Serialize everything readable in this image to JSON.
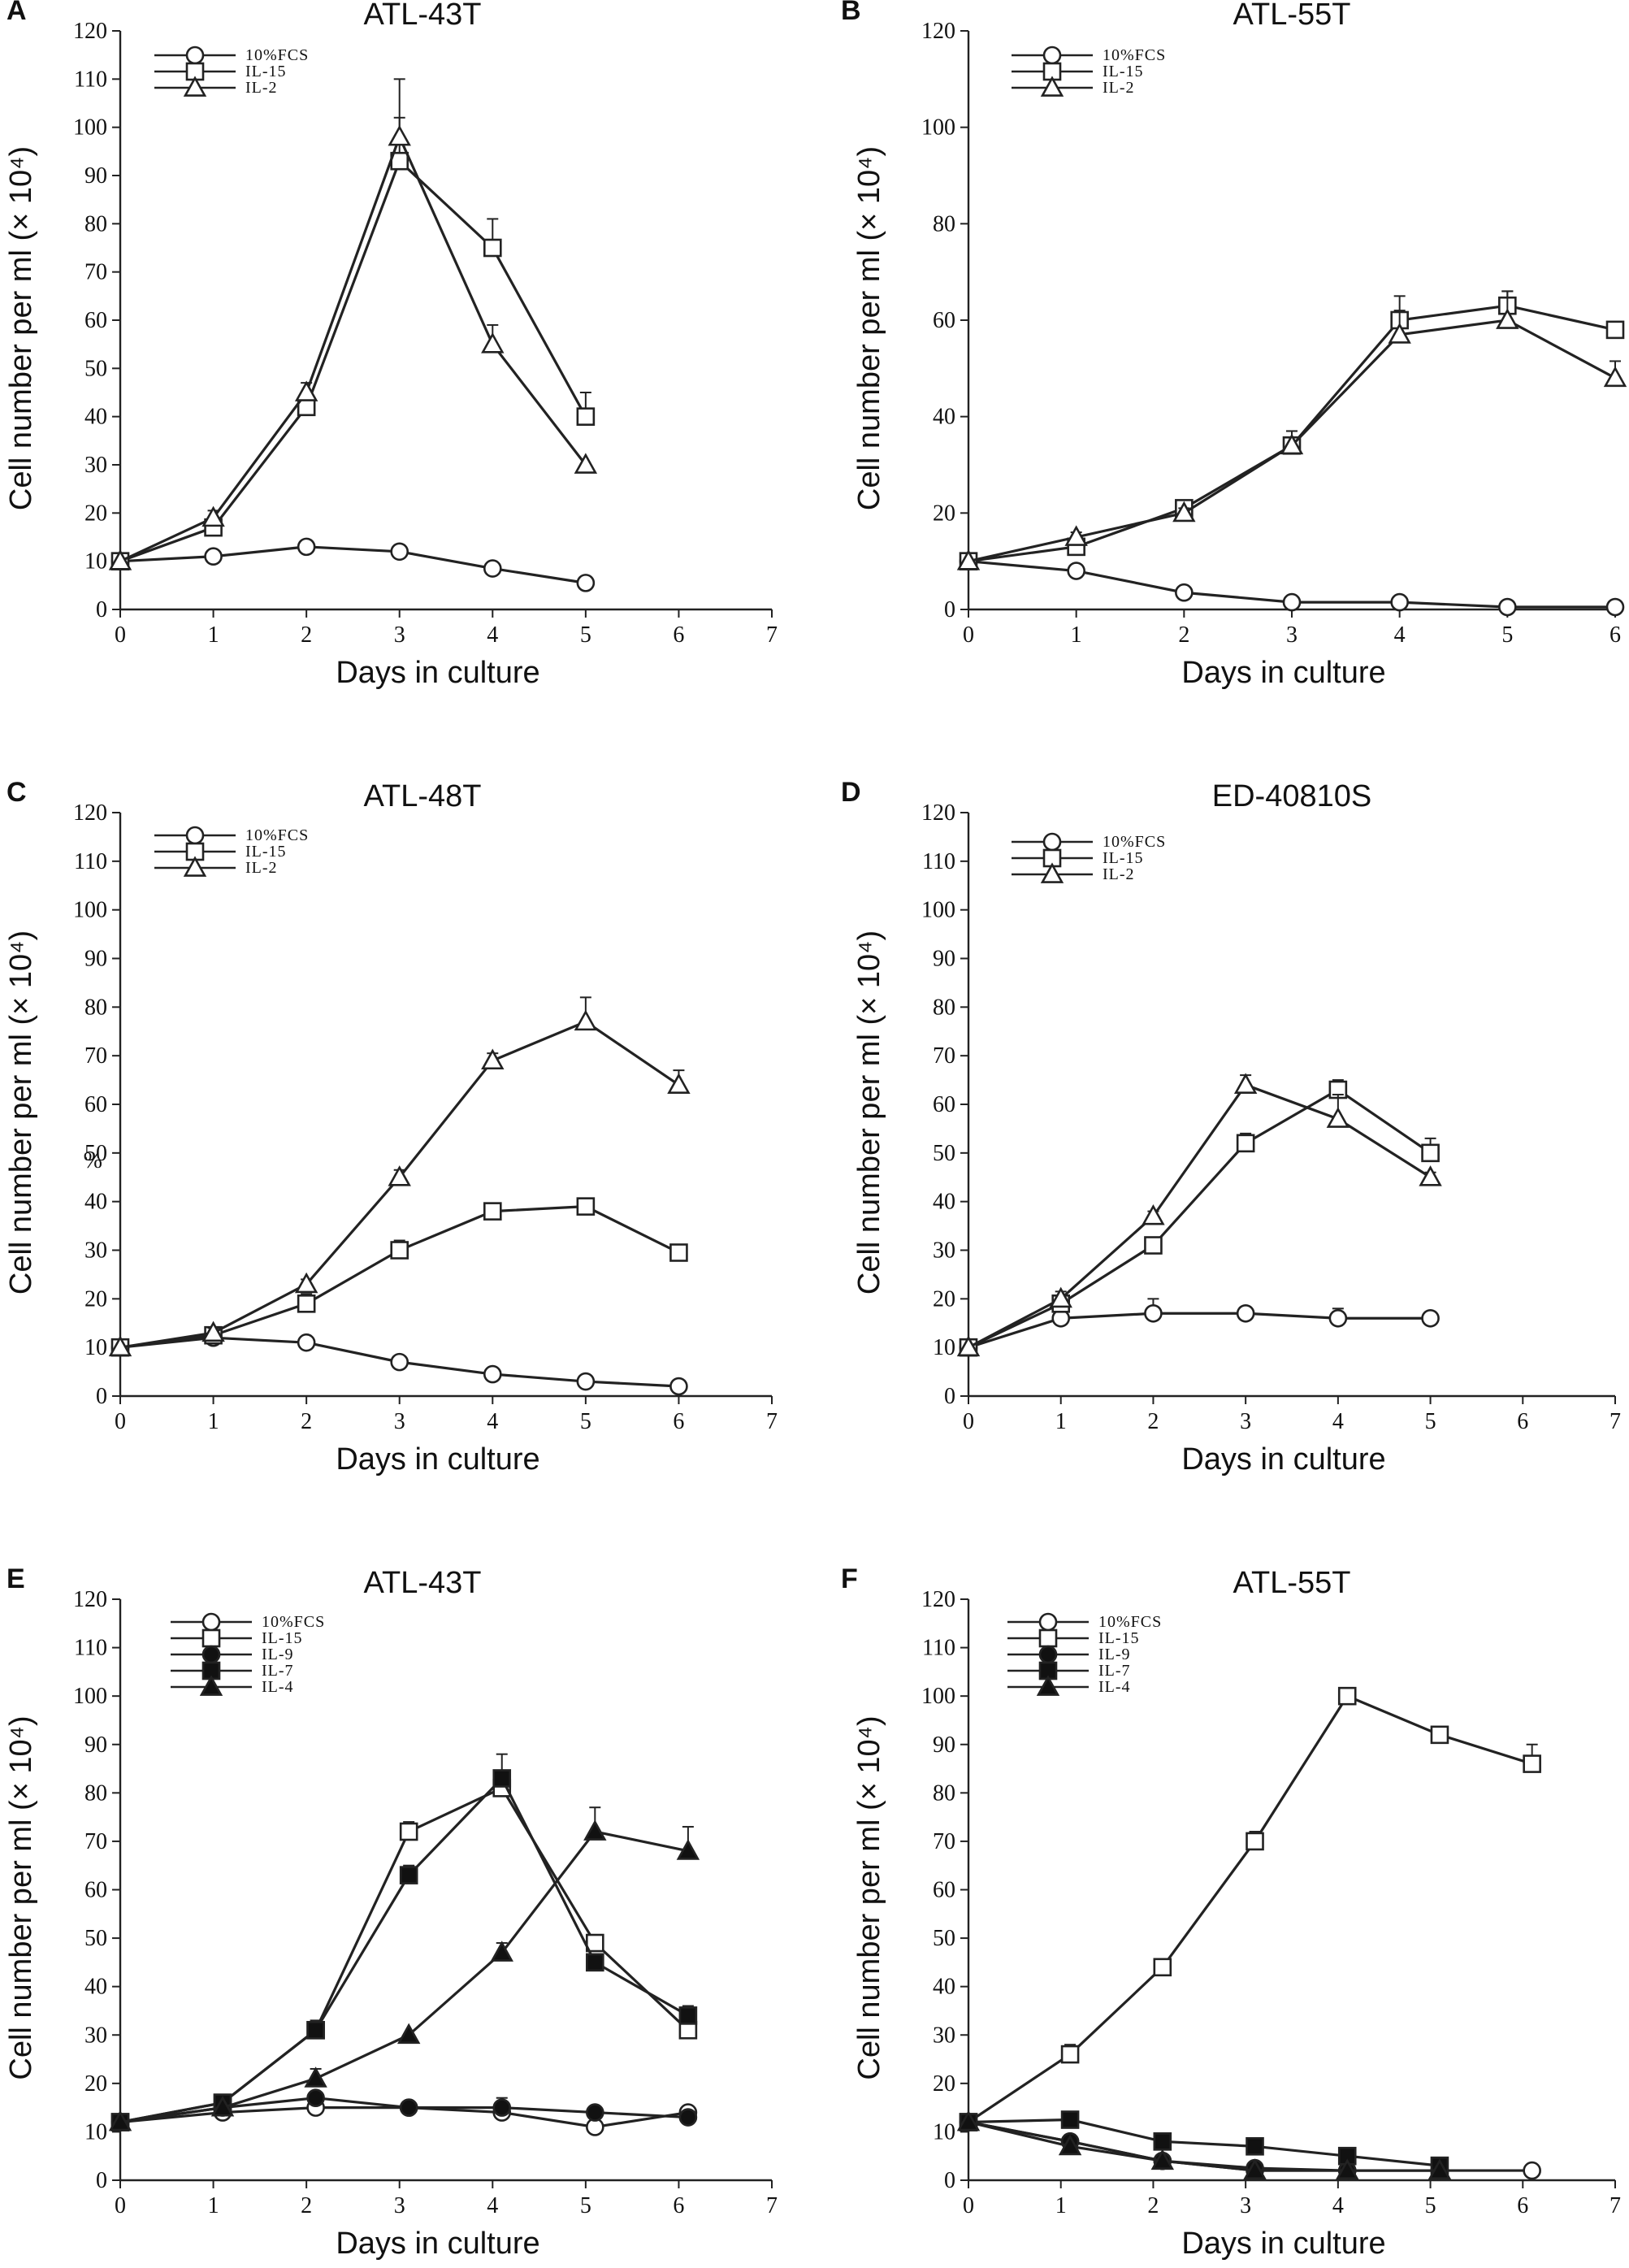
{
  "chart_data": [
    {
      "panel": "A",
      "type": "line",
      "title": "ATL-43T",
      "xlabel": "Days in culture",
      "ylabel": "Cell number per ml (× 10⁴)",
      "xlim": [
        0,
        7
      ],
      "ylim": [
        0,
        120
      ],
      "xticks": [
        0,
        1,
        2,
        3,
        4,
        5,
        6,
        7
      ],
      "yticks": [
        0,
        10,
        20,
        30,
        40,
        50,
        60,
        70,
        80,
        90,
        100,
        110,
        120
      ],
      "series": [
        {
          "name": "10%FCS",
          "marker": "circle-open",
          "x": [
            0,
            1,
            2,
            3,
            4,
            5
          ],
          "y": [
            10,
            11,
            13,
            12,
            8.5,
            5.5
          ],
          "err": [
            0,
            0,
            0,
            0,
            0,
            0
          ]
        },
        {
          "name": "IL-15",
          "marker": "square-open",
          "x": [
            0,
            1,
            2,
            3,
            4,
            5
          ],
          "y": [
            10,
            17,
            42,
            93,
            75,
            40
          ],
          "err": [
            0,
            1.5,
            3,
            9,
            6,
            5
          ]
        },
        {
          "name": "IL-2",
          "marker": "triangle-open",
          "x": [
            0,
            1,
            2,
            3,
            4,
            5
          ],
          "y": [
            10,
            19,
            45,
            98,
            55,
            30
          ],
          "err": [
            0,
            1.5,
            2,
            12,
            4,
            0
          ]
        }
      ]
    },
    {
      "panel": "B",
      "type": "line",
      "title": "ATL-55T",
      "xlabel": "Days in culture",
      "ylabel": "Cell number per ml (× 10⁴)",
      "xlim": [
        0,
        6
      ],
      "ylim": [
        0,
        120
      ],
      "xticks": [
        0,
        1,
        2,
        3,
        4,
        5,
        6
      ],
      "yticks": [
        0,
        20,
        40,
        60,
        80,
        100,
        120
      ],
      "series": [
        {
          "name": "10%FCS",
          "marker": "circle-open",
          "x": [
            0,
            1,
            2,
            3,
            4,
            5,
            6
          ],
          "y": [
            10,
            8,
            3.5,
            1.5,
            1.5,
            0.5,
            0.5
          ],
          "err": [
            0,
            0,
            0,
            0,
            0,
            0,
            0
          ]
        },
        {
          "name": "IL-15",
          "marker": "square-open",
          "x": [
            0,
            1,
            2,
            3,
            4,
            5,
            6
          ],
          "y": [
            10,
            13,
            21,
            34,
            60,
            63,
            58
          ],
          "err": [
            0,
            1,
            1,
            3,
            5,
            3,
            1.5
          ]
        },
        {
          "name": "IL-2",
          "marker": "triangle-open",
          "x": [
            0,
            1,
            2,
            3,
            4,
            5,
            6
          ],
          "y": [
            10,
            15,
            20,
            34,
            57,
            60,
            48
          ],
          "err": [
            0,
            1,
            1,
            3,
            5,
            6,
            3.5
          ]
        }
      ]
    },
    {
      "panel": "C",
      "type": "line",
      "title": "ATL-48T",
      "xlabel": "Days in culture",
      "ylabel": "Cell number per ml (× 10⁴)",
      "xlim": [
        0,
        7
      ],
      "ylim": [
        0,
        120
      ],
      "xticks": [
        0,
        1,
        2,
        3,
        4,
        5,
        6,
        7
      ],
      "yticks": [
        0,
        10,
        20,
        30,
        40,
        50,
        60,
        70,
        80,
        90,
        100,
        110,
        120
      ],
      "stray_mark": "%",
      "series": [
        {
          "name": "10%FCS",
          "marker": "circle-open",
          "x": [
            0,
            1,
            2,
            3,
            4,
            5,
            6
          ],
          "y": [
            10,
            12,
            11,
            7,
            4.5,
            3,
            2
          ],
          "err": [
            0,
            0,
            0,
            0,
            0,
            0,
            0
          ]
        },
        {
          "name": "IL-15",
          "marker": "square-open",
          "x": [
            0,
            1,
            2,
            3,
            4,
            5,
            6
          ],
          "y": [
            10,
            12.5,
            19,
            30,
            38,
            39,
            29.5
          ],
          "err": [
            0,
            1,
            2,
            2,
            1.5,
            1,
            1
          ]
        },
        {
          "name": "IL-2",
          "marker": "triangle-open",
          "x": [
            0,
            1,
            2,
            3,
            4,
            5,
            6
          ],
          "y": [
            10,
            13,
            23,
            45,
            69,
            77,
            64
          ],
          "err": [
            0,
            1,
            1,
            1.5,
            1.5,
            5,
            3
          ]
        }
      ]
    },
    {
      "panel": "D",
      "type": "line",
      "title": "ED-40810S",
      "xlabel": "Days in culture",
      "ylabel": "Cell number per ml (× 10⁴)",
      "xlim": [
        0,
        7
      ],
      "ylim": [
        0,
        120
      ],
      "xticks": [
        0,
        1,
        2,
        3,
        4,
        5,
        6,
        7
      ],
      "yticks": [
        0,
        10,
        20,
        30,
        40,
        50,
        60,
        70,
        80,
        90,
        100,
        110,
        120
      ],
      "series": [
        {
          "name": "10%FCS",
          "marker": "circle-open",
          "x": [
            0,
            1,
            2,
            3,
            4,
            5
          ],
          "y": [
            10,
            16,
            17,
            17,
            16,
            16
          ],
          "err": [
            0,
            1,
            3,
            0,
            2,
            0
          ]
        },
        {
          "name": "IL-15",
          "marker": "square-open",
          "x": [
            0,
            1,
            2,
            3,
            4,
            5
          ],
          "y": [
            10,
            19,
            31,
            52,
            63,
            50
          ],
          "err": [
            0,
            1,
            1,
            2,
            2,
            3
          ]
        },
        {
          "name": "IL-2",
          "marker": "triangle-open",
          "x": [
            0,
            1,
            2,
            3,
            4,
            5
          ],
          "y": [
            10,
            20,
            37,
            64,
            57,
            45
          ],
          "err": [
            0,
            1.5,
            1,
            2,
            5,
            1
          ]
        }
      ]
    },
    {
      "panel": "E",
      "type": "line",
      "title": "ATL-43T",
      "xlabel": "Days in culture",
      "ylabel": "Cell number per ml (× 10⁴)",
      "xlim": [
        0,
        7
      ],
      "ylim": [
        0,
        120
      ],
      "xticks": [
        0,
        1,
        2,
        3,
        4,
        5,
        6,
        7
      ],
      "yticks": [
        0,
        10,
        20,
        30,
        40,
        50,
        60,
        70,
        80,
        90,
        100,
        110,
        120
      ],
      "series": [
        {
          "name": "10%FCS",
          "marker": "circle-open",
          "x": [
            0,
            1.1,
            2.1,
            3.1,
            4.1,
            5.1,
            6.1
          ],
          "y": [
            12,
            14,
            15,
            15,
            14,
            11,
            14
          ],
          "err": [
            0,
            0,
            0,
            0,
            1.5,
            2,
            0
          ]
        },
        {
          "name": "IL-15",
          "marker": "square-open",
          "x": [
            0,
            1.1,
            2.1,
            3.1,
            4.1,
            5.1,
            6.1
          ],
          "y": [
            12,
            16,
            31,
            72,
            81,
            49,
            31
          ],
          "err": [
            0,
            0,
            2,
            2,
            3,
            0,
            1
          ]
        },
        {
          "name": "IL-9",
          "marker": "circle-filled",
          "x": [
            0,
            1.1,
            2.1,
            3.1,
            4.1,
            5.1,
            6.1
          ],
          "y": [
            12,
            15,
            17,
            15,
            15,
            14,
            13
          ],
          "err": [
            0,
            0,
            0,
            0,
            2,
            0,
            0
          ]
        },
        {
          "name": "IL-7",
          "marker": "square-filled",
          "x": [
            0,
            1.1,
            2.1,
            3.1,
            4.1,
            5.1,
            6.1
          ],
          "y": [
            12,
            16,
            31,
            63,
            83,
            45,
            34
          ],
          "err": [
            0,
            0,
            0,
            2,
            5,
            0,
            2
          ]
        },
        {
          "name": "IL-4",
          "marker": "triangle-filled",
          "x": [
            0,
            1.1,
            2.1,
            3.1,
            4.1,
            5.1,
            6.1
          ],
          "y": [
            12,
            15,
            21,
            30,
            47,
            72,
            68
          ],
          "err": [
            0,
            0,
            2,
            0,
            2,
            5,
            5
          ]
        }
      ]
    },
    {
      "panel": "F",
      "type": "line",
      "title": "ATL-55T",
      "xlabel": "Days in culture",
      "ylabel": "Cell number per ml (× 10⁴)",
      "xlim": [
        0,
        7
      ],
      "ylim": [
        0,
        120
      ],
      "xticks": [
        0,
        1,
        2,
        3,
        4,
        5,
        6,
        7
      ],
      "yticks": [
        0,
        10,
        20,
        30,
        40,
        50,
        60,
        70,
        80,
        90,
        100,
        110,
        120
      ],
      "series": [
        {
          "name": "10%FCS",
          "marker": "circle-open",
          "x": [
            0,
            1.1,
            2.1,
            3.1,
            4.1,
            5.1,
            6.1
          ],
          "y": [
            12,
            8,
            4,
            2,
            2,
            2,
            2
          ],
          "err": [
            0,
            0,
            0,
            0,
            0,
            0,
            0
          ]
        },
        {
          "name": "IL-15",
          "marker": "square-open",
          "x": [
            0,
            1.1,
            2.1,
            3.1,
            4.1,
            5.1,
            6.1
          ],
          "y": [
            12,
            26,
            44,
            70,
            100,
            92,
            86
          ],
          "err": [
            0,
            2,
            1,
            2,
            0,
            0,
            4
          ]
        },
        {
          "name": "IL-9",
          "marker": "circle-filled",
          "x": [
            0,
            1.1,
            2.1,
            3.1,
            4.1,
            5.1
          ],
          "y": [
            12,
            8,
            4,
            2.5,
            2,
            2
          ],
          "err": [
            0,
            0,
            0,
            0,
            0,
            0
          ]
        },
        {
          "name": "IL-7",
          "marker": "square-filled",
          "x": [
            0,
            1.1,
            2.1,
            3.1,
            4.1,
            5.1
          ],
          "y": [
            12,
            12.5,
            8,
            7,
            5,
            3
          ],
          "err": [
            0,
            0,
            0,
            0,
            0,
            0
          ]
        },
        {
          "name": "IL-4",
          "marker": "triangle-filled",
          "x": [
            0,
            1.1,
            2.1,
            3.1,
            4.1,
            5.1
          ],
          "y": [
            12,
            7,
            4,
            2,
            2,
            2
          ],
          "err": [
            0,
            0,
            0,
            0,
            0,
            0
          ]
        }
      ]
    }
  ]
}
